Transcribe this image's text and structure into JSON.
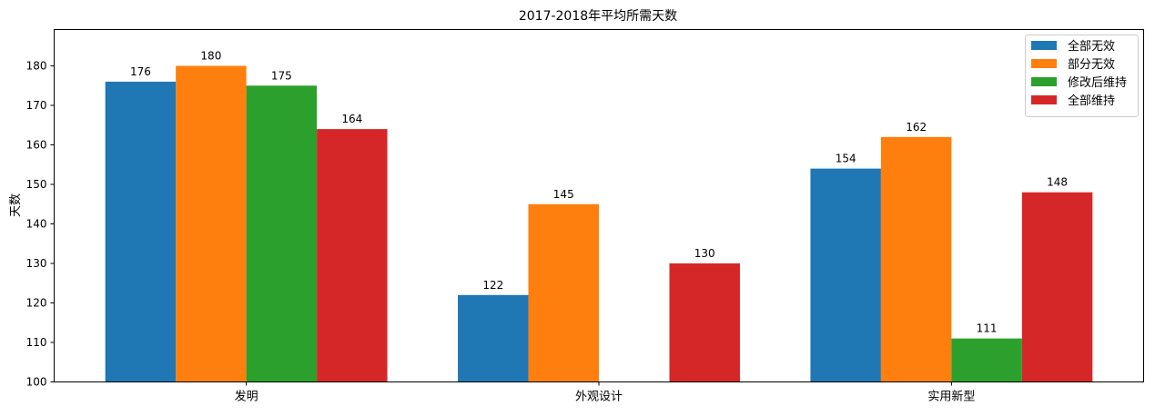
{
  "chart_data": {
    "type": "bar",
    "title": "2017-2018年平均所需天数",
    "xlabel": "",
    "ylabel": "天数",
    "categories": [
      "发明",
      "外观设计",
      "实用新型"
    ],
    "series": [
      {
        "name": "全部无效",
        "color": "#1f77b4",
        "values": [
          176,
          122,
          154
        ]
      },
      {
        "name": "部分无效",
        "color": "#ff7f0e",
        "values": [
          180,
          145,
          162
        ]
      },
      {
        "name": "修改后维持",
        "color": "#2ca02c",
        "values": [
          175,
          null,
          111
        ]
      },
      {
        "name": "全部维持",
        "color": "#d62728",
        "values": [
          164,
          130,
          148
        ]
      }
    ],
    "ylim": [
      100,
      189.2
    ],
    "yticks": [
      100,
      110,
      120,
      130,
      140,
      150,
      160,
      170,
      180
    ],
    "grid": false,
    "legend": "top-right",
    "data_labels": true
  }
}
